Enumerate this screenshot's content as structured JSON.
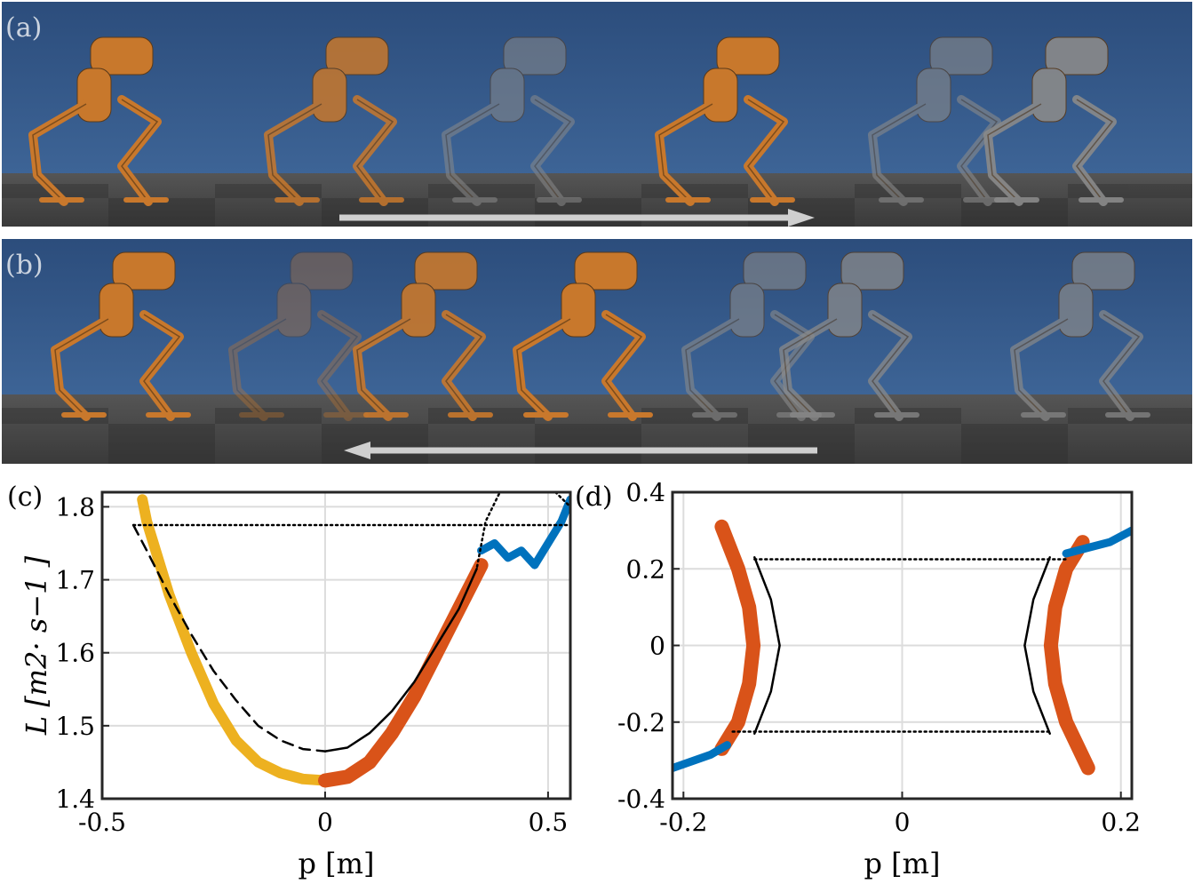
{
  "panels": {
    "a": {
      "label": "(a)",
      "direction": "forward"
    },
    "b": {
      "label": "(b)",
      "direction": "backward"
    },
    "c": {
      "label": "(c)"
    },
    "d": {
      "label": "(d)"
    }
  },
  "colors": {
    "sky": "#36598a",
    "robot_active": "#c8782c",
    "robot_ghost": "#8a8a8a",
    "arrow": "#c8c8c8",
    "orange": "#d95319",
    "yellow": "#edb120",
    "blue": "#0072bd"
  },
  "chart_data": [
    {
      "id": "c",
      "type": "scatter",
      "xlabel": "p [m]",
      "ylabel": "L [m2· s−1 ]",
      "xlim": [
        -0.5,
        0.55
      ],
      "ylim": [
        1.4,
        1.82
      ],
      "xticks": [
        -0.5,
        0,
        0.5
      ],
      "xtick_labels": [
        "-0.5",
        "0",
        "0.5"
      ],
      "yticks": [
        1.4,
        1.5,
        1.6,
        1.7,
        1.8
      ],
      "ytick_labels": [
        "1.4",
        "1.5",
        "1.6",
        "1.7",
        "1.8"
      ],
      "grid": true,
      "series": [
        {
          "style": "yellow-band",
          "x": [
            -0.41,
            -0.4,
            -0.35,
            -0.3,
            -0.25,
            -0.2,
            -0.15,
            -0.1,
            -0.05,
            0.0
          ],
          "y": [
            1.81,
            1.78,
            1.68,
            1.6,
            1.53,
            1.48,
            1.45,
            1.435,
            1.427,
            1.425
          ]
        },
        {
          "style": "orange-band",
          "x": [
            0.0,
            0.05,
            0.1,
            0.15,
            0.2,
            0.25,
            0.3,
            0.35
          ],
          "y": [
            1.425,
            1.43,
            1.45,
            1.49,
            1.54,
            1.6,
            1.66,
            1.72
          ]
        },
        {
          "style": "blue-scatter",
          "x": [
            0.35,
            0.38,
            0.41,
            0.44,
            0.47,
            0.5,
            0.53,
            0.55
          ],
          "y": [
            1.74,
            1.75,
            1.73,
            1.74,
            1.72,
            1.75,
            1.78,
            1.81
          ]
        },
        {
          "style": "black-solid",
          "x": [
            0.0,
            0.05,
            0.1,
            0.15,
            0.2,
            0.25,
            0.3,
            0.34
          ],
          "y": [
            1.465,
            1.47,
            1.49,
            1.52,
            1.56,
            1.61,
            1.66,
            1.715
          ]
        },
        {
          "style": "black-dashed",
          "x": [
            -0.43,
            -0.4,
            -0.35,
            -0.3,
            -0.25,
            -0.2,
            -0.15,
            -0.1,
            -0.05,
            0.0
          ],
          "y": [
            1.775,
            1.74,
            1.68,
            1.625,
            1.575,
            1.535,
            1.5,
            1.48,
            1.468,
            1.465
          ]
        },
        {
          "style": "black-dotted",
          "x": [
            -0.43,
            0.55,
            0.55,
            0.5,
            0.45,
            0.4,
            0.36,
            0.34
          ],
          "y": [
            1.775,
            1.775,
            1.8,
            1.83,
            1.84,
            1.83,
            1.78,
            1.715
          ]
        }
      ]
    },
    {
      "id": "d",
      "type": "scatter",
      "xlabel": "p [m]",
      "ylabel": "",
      "xlim": [
        -0.21,
        0.21
      ],
      "ylim": [
        -0.4,
        0.4
      ],
      "xticks": [
        -0.2,
        0,
        0.2
      ],
      "xtick_labels": [
        "-0.2",
        "0",
        "0.2"
      ],
      "yticks": [
        -0.4,
        -0.2,
        0,
        0.2,
        0.4
      ],
      "ytick_labels": [
        "-0.4",
        "-0.2",
        "0",
        "0.2",
        "0.4"
      ],
      "grid": true,
      "series": [
        {
          "style": "orange-band",
          "x": [
            -0.165,
            -0.15,
            -0.14,
            -0.136,
            -0.14,
            -0.15,
            -0.165
          ],
          "y": [
            0.31,
            0.2,
            0.1,
            0,
            -0.1,
            -0.2,
            -0.27
          ]
        },
        {
          "style": "orange-band",
          "x": [
            0.165,
            0.15,
            0.14,
            0.136,
            0.14,
            0.15,
            0.17
          ],
          "y": [
            0.27,
            0.2,
            0.1,
            0,
            -0.1,
            -0.2,
            -0.32
          ]
        },
        {
          "style": "blue-scatter",
          "x": [
            -0.21,
            -0.19,
            -0.175,
            -0.16
          ],
          "y": [
            -0.32,
            -0.3,
            -0.285,
            -0.26
          ]
        },
        {
          "style": "blue-scatter",
          "x": [
            0.15,
            0.17,
            0.19,
            0.21
          ],
          "y": [
            0.24,
            0.255,
            0.27,
            0.3
          ]
        },
        {
          "style": "black-solid",
          "x": [
            -0.135,
            -0.12,
            -0.112,
            -0.12,
            -0.135
          ],
          "y": [
            0.23,
            0.12,
            0,
            -0.12,
            -0.23
          ]
        },
        {
          "style": "black-solid",
          "x": [
            0.135,
            0.12,
            0.112,
            0.12,
            0.135
          ],
          "y": [
            0.23,
            0.12,
            0,
            -0.12,
            -0.23
          ]
        },
        {
          "style": "black-dotted",
          "x": [
            -0.135,
            0.15
          ],
          "y": [
            0.225,
            0.225
          ]
        },
        {
          "style": "black-dotted",
          "x": [
            -0.155,
            0.135
          ],
          "y": [
            -0.225,
            -0.225
          ]
        }
      ]
    }
  ]
}
